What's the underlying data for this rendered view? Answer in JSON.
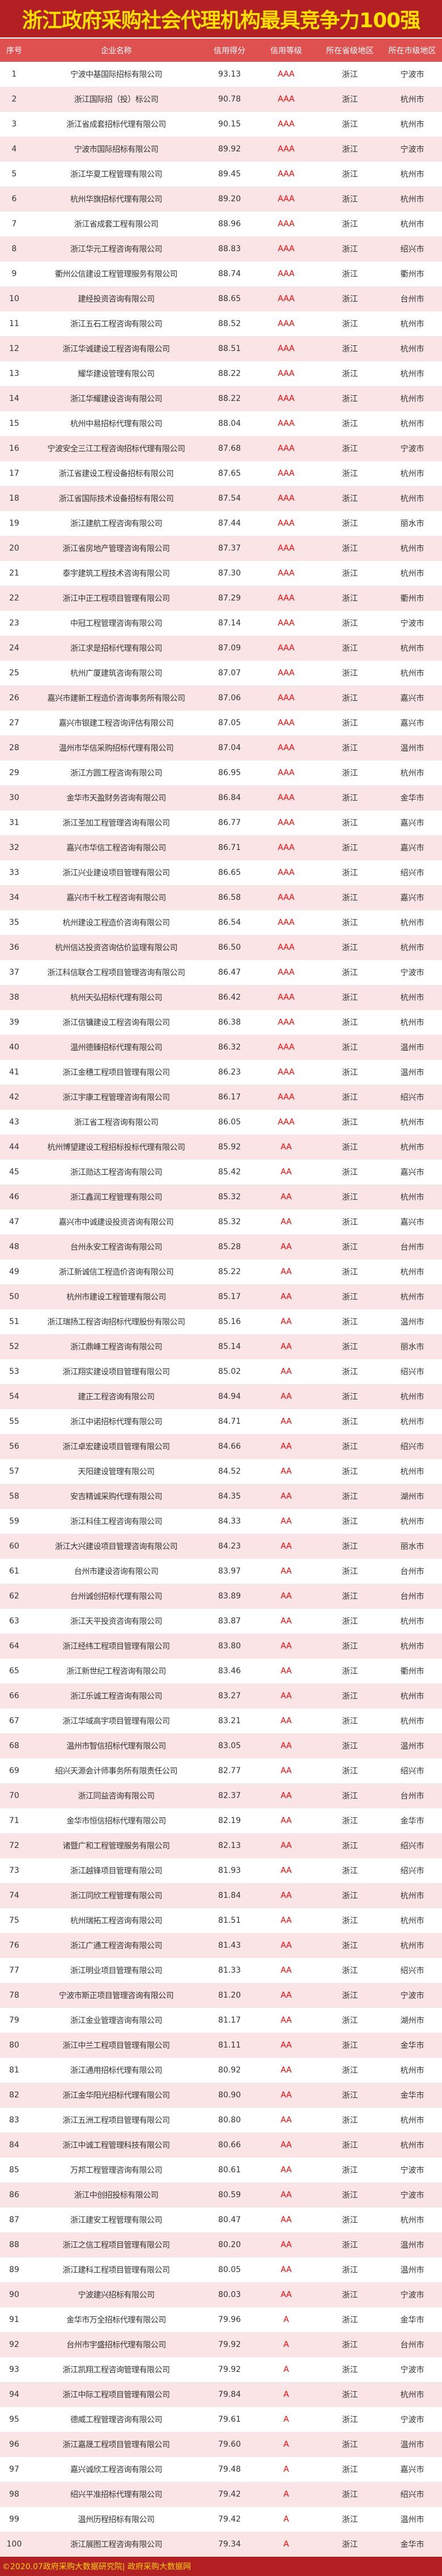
{
  "title": "浙江政府采购社会代理机构最具竞争力100强",
  "columns": [
    "序号",
    "企业名称",
    "信用得分",
    "信用等级",
    "所在省级地区",
    "所在市级地区"
  ],
  "colors": {
    "title_bg": "#b22024",
    "title_text": "#ffe100",
    "header_bg": "#df5050",
    "alt_row": "#fae4e6",
    "grade_text": "#ff0000"
  },
  "rows": [
    [
      "1",
      "宁波中基国际招标有限公司",
      "93.13",
      "AAA",
      "浙江",
      "宁波市"
    ],
    [
      "2",
      "浙江国际招（投）标公司",
      "90.78",
      "AAA",
      "浙江",
      "杭州市"
    ],
    [
      "3",
      "浙江省成套招标代理有限公司",
      "90.15",
      "AAA",
      "浙江",
      "杭州市"
    ],
    [
      "4",
      "宁波市国际招标有限公司",
      "89.92",
      "AAA",
      "浙江",
      "宁波市"
    ],
    [
      "5",
      "浙江华夏工程管理有限公司",
      "89.45",
      "AAA",
      "浙江",
      "杭州市"
    ],
    [
      "6",
      "杭州华旗招标代理有限公司",
      "89.20",
      "AAA",
      "浙江",
      "杭州市"
    ],
    [
      "7",
      "浙江省成套工程有限公司",
      "88.96",
      "AAA",
      "浙江",
      "杭州市"
    ],
    [
      "8",
      "浙江华元工程咨询有限公司",
      "88.83",
      "AAA",
      "浙江",
      "绍兴市"
    ],
    [
      "9",
      "衢州公信建设工程管理服务有限公司",
      "88.74",
      "AAA",
      "浙江",
      "衢州市"
    ],
    [
      "10",
      "建经投资咨询有限公司",
      "88.65",
      "AAA",
      "浙江",
      "台州市"
    ],
    [
      "11",
      "浙江五石工程咨询有限公司",
      "88.52",
      "AAA",
      "浙江",
      "杭州市"
    ],
    [
      "12",
      "浙江华诚建设工程咨询有限公司",
      "88.51",
      "AAA",
      "浙江",
      "杭州市"
    ],
    [
      "13",
      "耀华建设管理有限公司",
      "88.22",
      "AAA",
      "浙江",
      "杭州市"
    ],
    [
      "14",
      "浙江华耀建设咨询有限公司",
      "88.22",
      "AAA",
      "浙江",
      "杭州市"
    ],
    [
      "15",
      "杭州中易招标代理有限公司",
      "88.04",
      "AAA",
      "浙江",
      "杭州市"
    ],
    [
      "16",
      "宁波安全三江工程咨询招标代理有限公司",
      "87.68",
      "AAA",
      "浙江",
      "宁波市"
    ],
    [
      "17",
      "浙江省建设工程设备招标有限公司",
      "87.65",
      "AAA",
      "浙江",
      "杭州市"
    ],
    [
      "18",
      "浙江省国际技术设备招标有限公司",
      "87.54",
      "AAA",
      "浙江",
      "杭州市"
    ],
    [
      "19",
      "浙江建航工程咨询有限公司",
      "87.44",
      "AAA",
      "浙江",
      "丽水市"
    ],
    [
      "20",
      "浙江省房地产管理咨询有限公司",
      "87.37",
      "AAA",
      "浙江",
      "杭州市"
    ],
    [
      "21",
      "泰宇建筑工程技术咨询有限公司",
      "87.30",
      "AAA",
      "浙江",
      "杭州市"
    ],
    [
      "22",
      "浙江中正工程项目管理有限公司",
      "87.29",
      "AAA",
      "浙江",
      "衢州市"
    ],
    [
      "23",
      "中冠工程管理咨询有限公司",
      "87.14",
      "AAA",
      "浙江",
      "宁波市"
    ],
    [
      "24",
      "浙江求是招标代理有限公司",
      "87.09",
      "AAA",
      "浙江",
      "杭州市"
    ],
    [
      "25",
      "杭州广厦建筑咨询有限公司",
      "87.07",
      "AAA",
      "浙江",
      "杭州市"
    ],
    [
      "26",
      "嘉兴市建新工程造价咨询事务所有限公司",
      "87.06",
      "AAA",
      "浙江",
      "嘉兴市"
    ],
    [
      "27",
      "嘉兴市银建工程咨询评估有限公司",
      "87.05",
      "AAA",
      "浙江",
      "嘉兴市"
    ],
    [
      "28",
      "温州市华信采购招标代理有限公司",
      "87.04",
      "AAA",
      "浙江",
      "温州市"
    ],
    [
      "29",
      "浙江方圆工程咨询有限公司",
      "86.95",
      "AAA",
      "浙江",
      "杭州市"
    ],
    [
      "30",
      "金华市天盈财务咨询有限公司",
      "86.84",
      "AAA",
      "浙江",
      "金华市"
    ],
    [
      "31",
      "浙江圣加工程管理咨询有限公司",
      "86.77",
      "AAA",
      "浙江",
      "嘉兴市"
    ],
    [
      "32",
      "嘉兴市华信工程咨询有限公司",
      "86.71",
      "AAA",
      "浙江",
      "嘉兴市"
    ],
    [
      "33",
      "浙江兴业建设项目管理有限公司",
      "86.65",
      "AAA",
      "浙江",
      "绍兴市"
    ],
    [
      "34",
      "嘉兴市千秋工程咨询有限公司",
      "86.58",
      "AAA",
      "浙江",
      "嘉兴市"
    ],
    [
      "35",
      "杭州建设工程造价咨询有限公司",
      "86.54",
      "AAA",
      "浙江",
      "杭州市"
    ],
    [
      "36",
      "杭州信达投资咨询估价监理有限公司",
      "86.50",
      "AAA",
      "浙江",
      "杭州市"
    ],
    [
      "37",
      "浙江科信联合工程项目管理咨询有限公司",
      "86.47",
      "AAA",
      "浙江",
      "宁波市"
    ],
    [
      "38",
      "杭州天弘招标代理有限公司",
      "86.42",
      "AAA",
      "浙江",
      "杭州市"
    ],
    [
      "39",
      "浙江信镛建设工程咨询有限公司",
      "86.38",
      "AAA",
      "浙江",
      "杭州市"
    ],
    [
      "40",
      "温州德臻招标代理有限公司",
      "86.32",
      "AAA",
      "浙江",
      "温州市"
    ],
    [
      "41",
      "浙江金穗工程项目管理有限公司",
      "86.23",
      "AAA",
      "浙江",
      "温州市"
    ],
    [
      "42",
      "浙江宇康工程管理咨询有限公司",
      "86.17",
      "AAA",
      "浙江",
      "绍兴市"
    ],
    [
      "43",
      "浙江省工程咨询有限公司",
      "86.05",
      "AAA",
      "浙江",
      "杭州市"
    ],
    [
      "44",
      "杭州博望建设工程招标投标代理有限公司",
      "85.92",
      "AA",
      "浙江",
      "杭州市"
    ],
    [
      "45",
      "浙江勋达工程咨询有限公司",
      "85.42",
      "AA",
      "浙江",
      "嘉兴市"
    ],
    [
      "46",
      "浙江鑫润工程管理有限公司",
      "85.32",
      "AA",
      "浙江",
      "杭州市"
    ],
    [
      "47",
      "嘉兴市中诚建设投资咨询有限公司",
      "85.32",
      "AA",
      "浙江",
      "嘉兴市"
    ],
    [
      "48",
      "台州永安工程咨询有限公司",
      "85.28",
      "AA",
      "浙江",
      "台州市"
    ],
    [
      "49",
      "浙江新诚信工程造价咨询有限公司",
      "85.22",
      "AA",
      "浙江",
      "杭州市"
    ],
    [
      "50",
      "杭州市建设工程管理有限公司",
      "85.17",
      "AA",
      "浙江",
      "杭州市"
    ],
    [
      "51",
      "浙江瑞扬工程咨询招标代理股份有限公司",
      "85.16",
      "AA",
      "浙江",
      "温州市"
    ],
    [
      "52",
      "浙江鼎峰工程咨询有限公司",
      "85.14",
      "AA",
      "浙江",
      "丽水市"
    ],
    [
      "53",
      "浙江翔实建设项目管理有限公司",
      "85.02",
      "AA",
      "浙江",
      "绍兴市"
    ],
    [
      "54",
      "建正工程咨询有限公司",
      "84.94",
      "AA",
      "浙江",
      "杭州市"
    ],
    [
      "55",
      "浙江中诺招标代理有限公司",
      "84.71",
      "AA",
      "浙江",
      "杭州市"
    ],
    [
      "56",
      "浙江卓宏建设项目管理有限公司",
      "84.66",
      "AA",
      "浙江",
      "绍兴市"
    ],
    [
      "57",
      "天阳建设管理有限公司",
      "84.52",
      "AA",
      "浙江",
      "杭州市"
    ],
    [
      "58",
      "安吉精诚采购代理有限公司",
      "84.35",
      "AA",
      "浙江",
      "湖州市"
    ],
    [
      "59",
      "浙江科佳工程咨询有限公司",
      "84.33",
      "AA",
      "浙江",
      "杭州市"
    ],
    [
      "60",
      "浙江大兴建设项目管理咨询有限公司",
      "84.23",
      "AA",
      "浙江",
      "丽水市"
    ],
    [
      "61",
      "台州市建设咨询有限公司",
      "83.97",
      "AA",
      "浙江",
      "台州市"
    ],
    [
      "62",
      "台州诚创招标代理有限公司",
      "83.89",
      "AA",
      "浙江",
      "台州市"
    ],
    [
      "63",
      "浙江天平投资咨询有限公司",
      "83.87",
      "AA",
      "浙江",
      "杭州市"
    ],
    [
      "64",
      "浙江经纬工程项目管理有限公司",
      "83.80",
      "AA",
      "浙江",
      "杭州市"
    ],
    [
      "65",
      "浙江新世纪工程咨询有限公司",
      "83.46",
      "AA",
      "浙江",
      "衢州市"
    ],
    [
      "66",
      "浙江乐诚工程咨询有限公司",
      "83.27",
      "AA",
      "浙江",
      "杭州市"
    ],
    [
      "67",
      "浙江华域高宇项目管理有限公司",
      "83.21",
      "AA",
      "浙江",
      "杭州市"
    ],
    [
      "68",
      "温州市智信招标代理有限公司",
      "83.05",
      "AA",
      "浙江",
      "温州市"
    ],
    [
      "69",
      "绍兴天源会计师事务所有限责任公司",
      "82.77",
      "AA",
      "浙江",
      "绍兴市"
    ],
    [
      "70",
      "浙江同益咨询有限公司",
      "82.37",
      "AA",
      "浙江",
      "台州市"
    ],
    [
      "71",
      "金华市恒信招标代理有限公司",
      "82.19",
      "AA",
      "浙江",
      "金华市"
    ],
    [
      "72",
      "诸暨广和工程管理服务有限公司",
      "82.13",
      "AA",
      "浙江",
      "绍兴市"
    ],
    [
      "73",
      "浙江越锋项目管理有限公司",
      "81.93",
      "AA",
      "浙江",
      "绍兴市"
    ],
    [
      "74",
      "浙江同欣工程管理有限公司",
      "81.84",
      "AA",
      "浙江",
      "杭州市"
    ],
    [
      "75",
      "杭州瑞拓工程咨询有限公司",
      "81.51",
      "AA",
      "浙江",
      "杭州市"
    ],
    [
      "76",
      "浙江广通工程咨询有限公司",
      "81.43",
      "AA",
      "浙江",
      "杭州市"
    ],
    [
      "77",
      "浙江明业项目管理有限公司",
      "81.33",
      "AA",
      "浙江",
      "绍兴市"
    ],
    [
      "78",
      "宁波市斯正项目管理咨询有限公司",
      "81.20",
      "AA",
      "浙江",
      "宁波市"
    ],
    [
      "79",
      "浙江金业管理咨询有限公司",
      "81.17",
      "AA",
      "浙江",
      "湖州市"
    ],
    [
      "80",
      "浙江中兰工程项目管理有限公司",
      "81.11",
      "AA",
      "浙江",
      "金华市"
    ],
    [
      "81",
      "浙江通用招标代理有限公司",
      "80.92",
      "AA",
      "浙江",
      "杭州市"
    ],
    [
      "82",
      "浙江金华阳光招标代理有限公司",
      "80.90",
      "AA",
      "浙江",
      "金华市"
    ],
    [
      "83",
      "浙江五洲工程项目管理有限公司",
      "80.80",
      "AA",
      "浙江",
      "杭州市"
    ],
    [
      "84",
      "浙江中诚工程管理科技有限公司",
      "80.66",
      "AA",
      "浙江",
      "杭州市"
    ],
    [
      "85",
      "万邦工程管理咨询有限公司",
      "80.61",
      "AA",
      "浙江",
      "宁波市"
    ],
    [
      "86",
      "浙江中创招投标有限公司",
      "80.59",
      "AA",
      "浙江",
      "宁波市"
    ],
    [
      "87",
      "浙江建安工程管理有限公司",
      "80.47",
      "AA",
      "浙江",
      "杭州市"
    ],
    [
      "88",
      "浙江之信工程项目管理有限公司",
      "80.20",
      "AA",
      "浙江",
      "温州市"
    ],
    [
      "89",
      "浙江建科工程项目管理有限公司",
      "80.05",
      "AA",
      "浙江",
      "温州市"
    ],
    [
      "90",
      "宁波建兴招标有限公司",
      "80.03",
      "AA",
      "浙江",
      "宁波市"
    ],
    [
      "91",
      "金华市万全招标代理有限公司",
      "79.96",
      "A",
      "浙江",
      "金华市"
    ],
    [
      "92",
      "台州市宇盛招标代理有限公司",
      "79.92",
      "A",
      "浙江",
      "台州市"
    ],
    [
      "93",
      "浙江凯翔工程咨询管理有限公司",
      "79.92",
      "A",
      "浙江",
      "宁波市"
    ],
    [
      "94",
      "浙江中际工程项目管理有限公司",
      "79.84",
      "A",
      "浙江",
      "杭州市"
    ],
    [
      "95",
      "德威工程管理咨询有限公司",
      "79.61",
      "A",
      "浙江",
      "宁波市"
    ],
    [
      "96",
      "浙江嘉晟工程项目管理有限公司",
      "79.60",
      "A",
      "浙江",
      "温州市"
    ],
    [
      "97",
      "嘉兴诚欣工程咨询有限公司",
      "79.48",
      "A",
      "浙江",
      "嘉兴市"
    ],
    [
      "98",
      "绍兴平准招标代理有限公司",
      "79.42",
      "A",
      "浙江",
      "绍兴市"
    ],
    [
      "99",
      "温州历程招标有限公司",
      "79.42",
      "A",
      "浙江",
      "温州市"
    ],
    [
      "100",
      "浙江展图工程咨询有限公司",
      "79.34",
      "A",
      "浙江",
      "金华市"
    ]
  ],
  "footer": "©2020.07政府采购大数据研究院| 政府采购大数据网"
}
